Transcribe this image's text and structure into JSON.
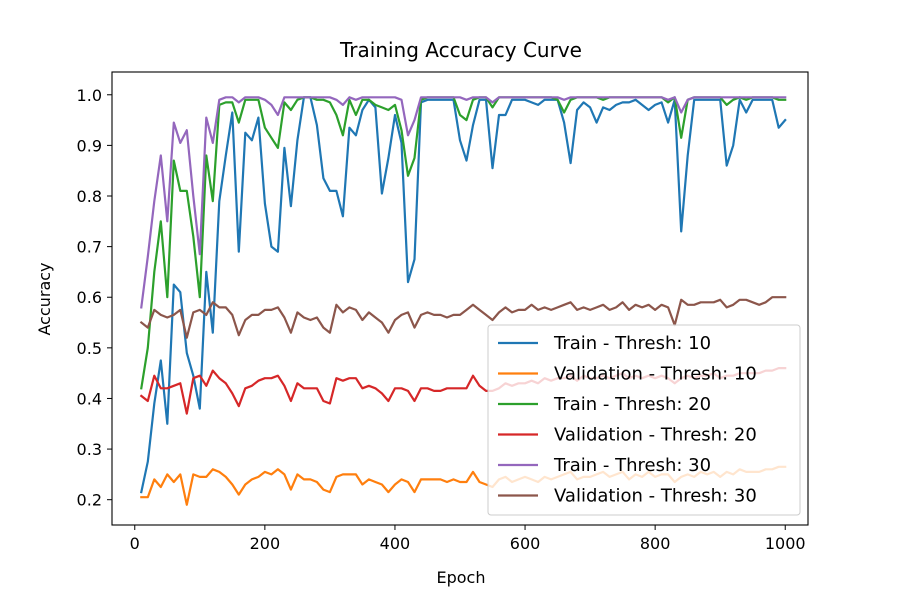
{
  "chart_data": {
    "type": "line",
    "title": "Training Accuracy Curve",
    "xlabel": "Epoch",
    "ylabel": "Accuracy",
    "xlim": [
      -35,
      1035
    ],
    "ylim": [
      0.15,
      1.045
    ],
    "xticks": [
      0,
      200,
      400,
      600,
      800,
      1000
    ],
    "yticks": [
      0.2,
      0.3,
      0.4,
      0.5,
      0.6,
      0.7,
      0.8,
      0.9,
      1.0
    ],
    "xtick_labels": [
      "0",
      "200",
      "400",
      "600",
      "800",
      "1000"
    ],
    "ytick_labels": [
      "0.2",
      "0.3",
      "0.4",
      "0.5",
      "0.6",
      "0.7",
      "0.8",
      "0.9",
      "1.0"
    ],
    "grid": false,
    "legend_position": "lower right",
    "x": [
      10,
      20,
      30,
      40,
      50,
      60,
      70,
      80,
      90,
      100,
      110,
      120,
      130,
      140,
      150,
      160,
      170,
      180,
      190,
      200,
      210,
      220,
      230,
      240,
      250,
      260,
      270,
      280,
      290,
      300,
      310,
      320,
      330,
      340,
      350,
      360,
      370,
      380,
      390,
      400,
      410,
      420,
      430,
      440,
      450,
      460,
      470,
      480,
      490,
      500,
      510,
      520,
      530,
      540,
      550,
      560,
      570,
      580,
      590,
      600,
      610,
      620,
      630,
      640,
      650,
      660,
      670,
      680,
      690,
      700,
      710,
      720,
      730,
      740,
      750,
      760,
      770,
      780,
      790,
      800,
      810,
      820,
      830,
      840,
      850,
      860,
      870,
      880,
      890,
      900,
      910,
      920,
      930,
      940,
      950,
      960,
      970,
      980,
      990,
      1000
    ],
    "series": [
      {
        "name": "Train - Thresh: 10",
        "color": "#1f77b4",
        "values": [
          0.215,
          0.275,
          0.39,
          0.475,
          0.35,
          0.625,
          0.61,
          0.49,
          0.445,
          0.38,
          0.65,
          0.53,
          0.79,
          0.88,
          0.965,
          0.69,
          0.925,
          0.91,
          0.955,
          0.785,
          0.7,
          0.69,
          0.895,
          0.78,
          0.91,
          0.995,
          0.995,
          0.94,
          0.835,
          0.81,
          0.81,
          0.76,
          0.935,
          0.92,
          0.97,
          0.99,
          0.975,
          0.805,
          0.875,
          0.96,
          0.905,
          0.63,
          0.675,
          0.985,
          0.99,
          0.99,
          0.99,
          0.99,
          0.99,
          0.91,
          0.87,
          0.94,
          0.99,
          0.99,
          0.855,
          0.96,
          0.96,
          0.99,
          0.99,
          0.99,
          0.985,
          0.98,
          0.99,
          0.99,
          0.99,
          0.945,
          0.865,
          0.97,
          0.985,
          0.975,
          0.945,
          0.975,
          0.97,
          0.98,
          0.985,
          0.985,
          0.99,
          0.98,
          0.97,
          0.98,
          0.985,
          0.945,
          0.99,
          0.73,
          0.88,
          0.99,
          0.99,
          0.99,
          0.99,
          0.99,
          0.86,
          0.9,
          0.99,
          0.965,
          0.99,
          0.99,
          0.99,
          0.99,
          0.935,
          0.95
        ]
      },
      {
        "name": "Validation - Thresh: 10",
        "color": "#ff7f0e",
        "values": [
          0.205,
          0.205,
          0.24,
          0.225,
          0.25,
          0.235,
          0.25,
          0.19,
          0.25,
          0.245,
          0.245,
          0.26,
          0.255,
          0.245,
          0.23,
          0.21,
          0.23,
          0.24,
          0.245,
          0.255,
          0.25,
          0.26,
          0.25,
          0.22,
          0.25,
          0.24,
          0.24,
          0.235,
          0.22,
          0.215,
          0.245,
          0.25,
          0.25,
          0.25,
          0.23,
          0.24,
          0.235,
          0.23,
          0.215,
          0.23,
          0.24,
          0.235,
          0.215,
          0.24,
          0.24,
          0.24,
          0.24,
          0.235,
          0.24,
          0.235,
          0.235,
          0.255,
          0.235,
          0.23,
          0.225,
          0.24,
          0.245,
          0.235,
          0.24,
          0.245,
          0.24,
          0.235,
          0.245,
          0.24,
          0.245,
          0.25,
          0.255,
          0.24,
          0.245,
          0.245,
          0.25,
          0.255,
          0.245,
          0.25,
          0.255,
          0.24,
          0.25,
          0.245,
          0.255,
          0.245,
          0.25,
          0.25,
          0.235,
          0.245,
          0.25,
          0.245,
          0.255,
          0.25,
          0.255,
          0.245,
          0.255,
          0.25,
          0.26,
          0.255,
          0.255,
          0.255,
          0.26,
          0.26,
          0.265,
          0.265
        ]
      },
      {
        "name": "Train - Thresh: 20",
        "color": "#2ca02c",
        "values": [
          0.42,
          0.5,
          0.65,
          0.75,
          0.6,
          0.87,
          0.81,
          0.81,
          0.72,
          0.6,
          0.88,
          0.79,
          0.98,
          0.985,
          0.985,
          0.945,
          0.99,
          0.99,
          0.99,
          0.935,
          0.915,
          0.895,
          0.985,
          0.97,
          0.99,
          0.995,
          0.995,
          0.99,
          0.99,
          0.985,
          0.96,
          0.92,
          0.99,
          0.96,
          0.99,
          0.99,
          0.98,
          0.975,
          0.97,
          0.98,
          0.93,
          0.84,
          0.875,
          0.99,
          0.995,
          0.995,
          0.995,
          0.995,
          0.995,
          0.96,
          0.95,
          0.99,
          0.995,
          0.995,
          0.975,
          0.995,
          0.995,
          0.995,
          0.995,
          0.995,
          0.995,
          0.995,
          0.995,
          0.995,
          0.99,
          0.965,
          0.99,
          0.995,
          0.995,
          0.995,
          0.995,
          0.99,
          0.995,
          0.995,
          0.995,
          0.995,
          0.995,
          0.995,
          0.995,
          0.995,
          0.995,
          0.985,
          0.995,
          0.915,
          0.99,
          0.995,
          0.995,
          0.995,
          0.995,
          0.995,
          0.98,
          0.99,
          0.995,
          0.99,
          0.995,
          0.995,
          0.995,
          0.995,
          0.99,
          0.99
        ]
      },
      {
        "name": "Validation - Thresh: 20",
        "color": "#d62728",
        "values": [
          0.405,
          0.395,
          0.445,
          0.42,
          0.42,
          0.425,
          0.43,
          0.37,
          0.44,
          0.445,
          0.425,
          0.455,
          0.44,
          0.43,
          0.41,
          0.385,
          0.42,
          0.425,
          0.435,
          0.44,
          0.44,
          0.445,
          0.425,
          0.395,
          0.43,
          0.42,
          0.42,
          0.42,
          0.395,
          0.39,
          0.44,
          0.435,
          0.44,
          0.44,
          0.42,
          0.425,
          0.42,
          0.41,
          0.395,
          0.42,
          0.42,
          0.415,
          0.395,
          0.42,
          0.42,
          0.415,
          0.415,
          0.42,
          0.42,
          0.42,
          0.42,
          0.445,
          0.425,
          0.415,
          0.415,
          0.42,
          0.43,
          0.425,
          0.43,
          0.43,
          0.435,
          0.43,
          0.44,
          0.435,
          0.44,
          0.44,
          0.445,
          0.435,
          0.445,
          0.44,
          0.44,
          0.445,
          0.44,
          0.445,
          0.45,
          0.44,
          0.445,
          0.44,
          0.445,
          0.44,
          0.445,
          0.44,
          0.43,
          0.44,
          0.445,
          0.44,
          0.445,
          0.445,
          0.45,
          0.44,
          0.445,
          0.445,
          0.45,
          0.45,
          0.45,
          0.45,
          0.455,
          0.455,
          0.46,
          0.46
        ]
      },
      {
        "name": "Train - Thresh: 30",
        "color": "#9467bd",
        "values": [
          0.58,
          0.68,
          0.79,
          0.88,
          0.75,
          0.945,
          0.905,
          0.93,
          0.8,
          0.685,
          0.955,
          0.905,
          0.99,
          0.995,
          0.995,
          0.985,
          0.995,
          0.995,
          0.995,
          0.99,
          0.98,
          0.96,
          0.995,
          0.995,
          0.995,
          0.995,
          0.995,
          0.995,
          0.995,
          0.995,
          0.99,
          0.98,
          0.995,
          0.99,
          0.995,
          0.995,
          0.995,
          0.995,
          0.995,
          0.995,
          0.99,
          0.92,
          0.95,
          0.995,
          0.995,
          0.995,
          0.995,
          0.995,
          0.995,
          0.995,
          0.99,
          0.995,
          0.995,
          0.995,
          0.985,
          0.995,
          0.995,
          0.995,
          0.995,
          0.995,
          0.995,
          0.995,
          0.995,
          0.995,
          0.995,
          0.99,
          0.995,
          0.995,
          0.995,
          0.995,
          0.995,
          0.995,
          0.995,
          0.995,
          0.995,
          0.995,
          0.995,
          0.995,
          0.995,
          0.995,
          0.995,
          0.99,
          0.995,
          0.965,
          0.99,
          0.995,
          0.995,
          0.995,
          0.995,
          0.995,
          0.995,
          0.995,
          0.995,
          0.995,
          0.995,
          0.995,
          0.995,
          0.995,
          0.995,
          0.995
        ]
      },
      {
        "name": "Validation - Thresh: 30",
        "color": "#8c564b",
        "values": [
          0.55,
          0.54,
          0.575,
          0.565,
          0.56,
          0.565,
          0.575,
          0.52,
          0.57,
          0.575,
          0.565,
          0.59,
          0.58,
          0.58,
          0.565,
          0.525,
          0.555,
          0.565,
          0.565,
          0.575,
          0.575,
          0.58,
          0.56,
          0.53,
          0.57,
          0.56,
          0.555,
          0.56,
          0.54,
          0.53,
          0.585,
          0.57,
          0.58,
          0.575,
          0.555,
          0.57,
          0.56,
          0.55,
          0.53,
          0.555,
          0.565,
          0.57,
          0.54,
          0.565,
          0.57,
          0.565,
          0.565,
          0.56,
          0.565,
          0.565,
          0.575,
          0.585,
          0.575,
          0.565,
          0.555,
          0.57,
          0.58,
          0.57,
          0.575,
          0.575,
          0.585,
          0.575,
          0.58,
          0.575,
          0.58,
          0.585,
          0.59,
          0.575,
          0.58,
          0.575,
          0.58,
          0.585,
          0.575,
          0.58,
          0.59,
          0.575,
          0.585,
          0.58,
          0.585,
          0.575,
          0.585,
          0.58,
          0.545,
          0.595,
          0.585,
          0.585,
          0.59,
          0.59,
          0.59,
          0.595,
          0.58,
          0.585,
          0.595,
          0.595,
          0.59,
          0.585,
          0.59,
          0.6,
          0.6,
          0.6
        ]
      }
    ]
  }
}
